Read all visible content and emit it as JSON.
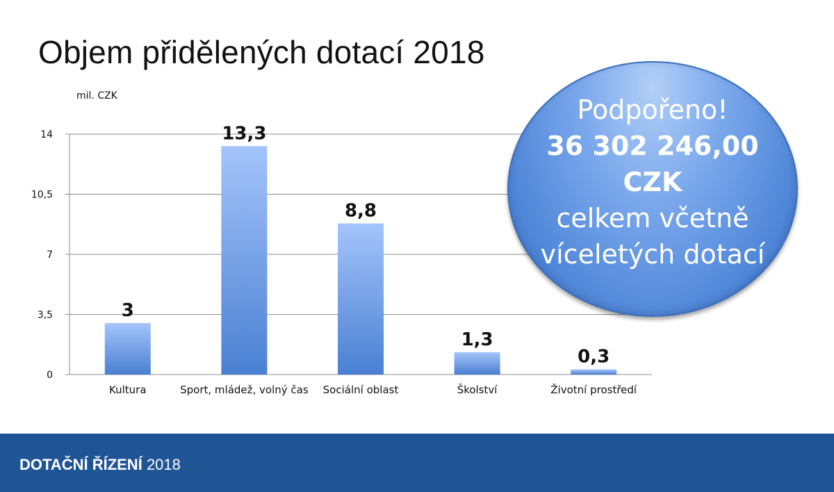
{
  "title": "Objem přidělených dotací 2018",
  "chart_data": {
    "type": "bar",
    "title": "Objem přidělených dotací 2018",
    "ylabel": "mil. CZK",
    "xlabel": "",
    "categories": [
      "Kultura",
      "Sport, mládež, volný čas",
      "Sociální oblast",
      "Školství",
      "Životní prostředí"
    ],
    "values": [
      3,
      13.3,
      8.8,
      1.3,
      0.3
    ],
    "value_labels": [
      "3",
      "13,3",
      "8,8",
      "1,3",
      "0,3"
    ],
    "yticks": [
      0,
      3.5,
      7,
      10.5,
      14
    ],
    "ytick_labels": [
      "0",
      "3,5",
      "7",
      "10,5",
      "14"
    ],
    "ylim": [
      0,
      14
    ],
    "grid": true
  },
  "callout": {
    "line1": "Podpořeno!",
    "line2": "36 302 246,00",
    "line3": "CZK",
    "line4": "celkem včetně",
    "line5": "víceletých dotací"
  },
  "footer": {
    "strong": "DOTAČNÍ ŘÍZENÍ",
    "year": "2018"
  },
  "colors": {
    "bar_top": "#a4c4fb",
    "bar_bottom": "#4a80d2",
    "footer_bg": "#1f5495"
  }
}
